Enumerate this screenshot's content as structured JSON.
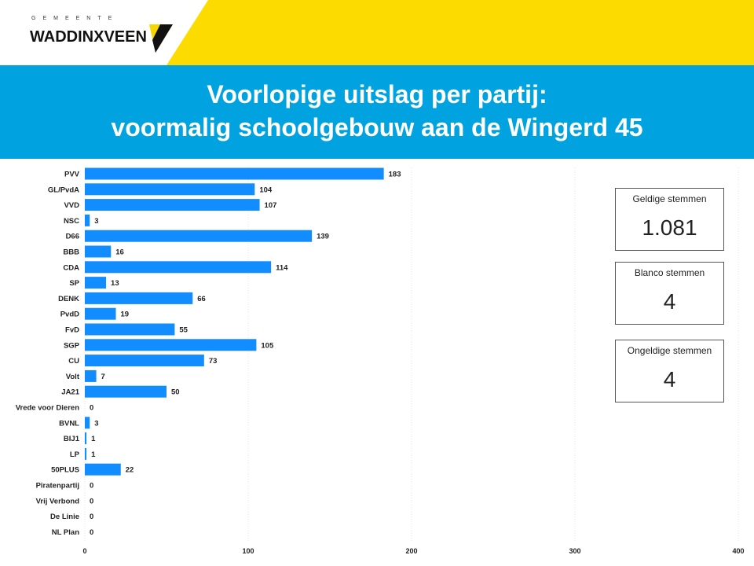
{
  "header": {
    "logo_top": "GEMEENTE",
    "logo_name": "WADDINXVEEN",
    "title_line1": "Voorlopige uitslag per partij:",
    "title_line2": "voormalig schoolgebouw aan de Wingerd 45"
  },
  "cards": [
    {
      "label": "Geldige stemmen",
      "value": "1.081"
    },
    {
      "label": "Blanco stemmen",
      "value": "4"
    },
    {
      "label": "Ongeldige stemmen",
      "value": "4"
    }
  ],
  "colors": {
    "bar": "#118dff",
    "yellow": "#fcdc00",
    "blue": "#00a3e0"
  },
  "chart_data": {
    "type": "bar",
    "orientation": "horizontal",
    "categories": [
      "PVV",
      "GL/PvdA",
      "VVD",
      "NSC",
      "D66",
      "BBB",
      "CDA",
      "SP",
      "DENK",
      "PvdD",
      "FvD",
      "SGP",
      "CU",
      "Volt",
      "JA21",
      "Vrede voor Dieren",
      "BVNL",
      "BIJ1",
      "LP",
      "50PLUS",
      "Piratenpartij",
      "Vrij Verbond",
      "De Linie",
      "NL Plan"
    ],
    "values": [
      183,
      104,
      107,
      3,
      139,
      16,
      114,
      13,
      66,
      19,
      55,
      105,
      73,
      7,
      50,
      0,
      3,
      1,
      1,
      22,
      0,
      0,
      0,
      0
    ],
    "xlim": [
      0,
      400
    ],
    "xticks": [
      0,
      100,
      200,
      300,
      400
    ],
    "grid": true,
    "data_labels": true
  }
}
